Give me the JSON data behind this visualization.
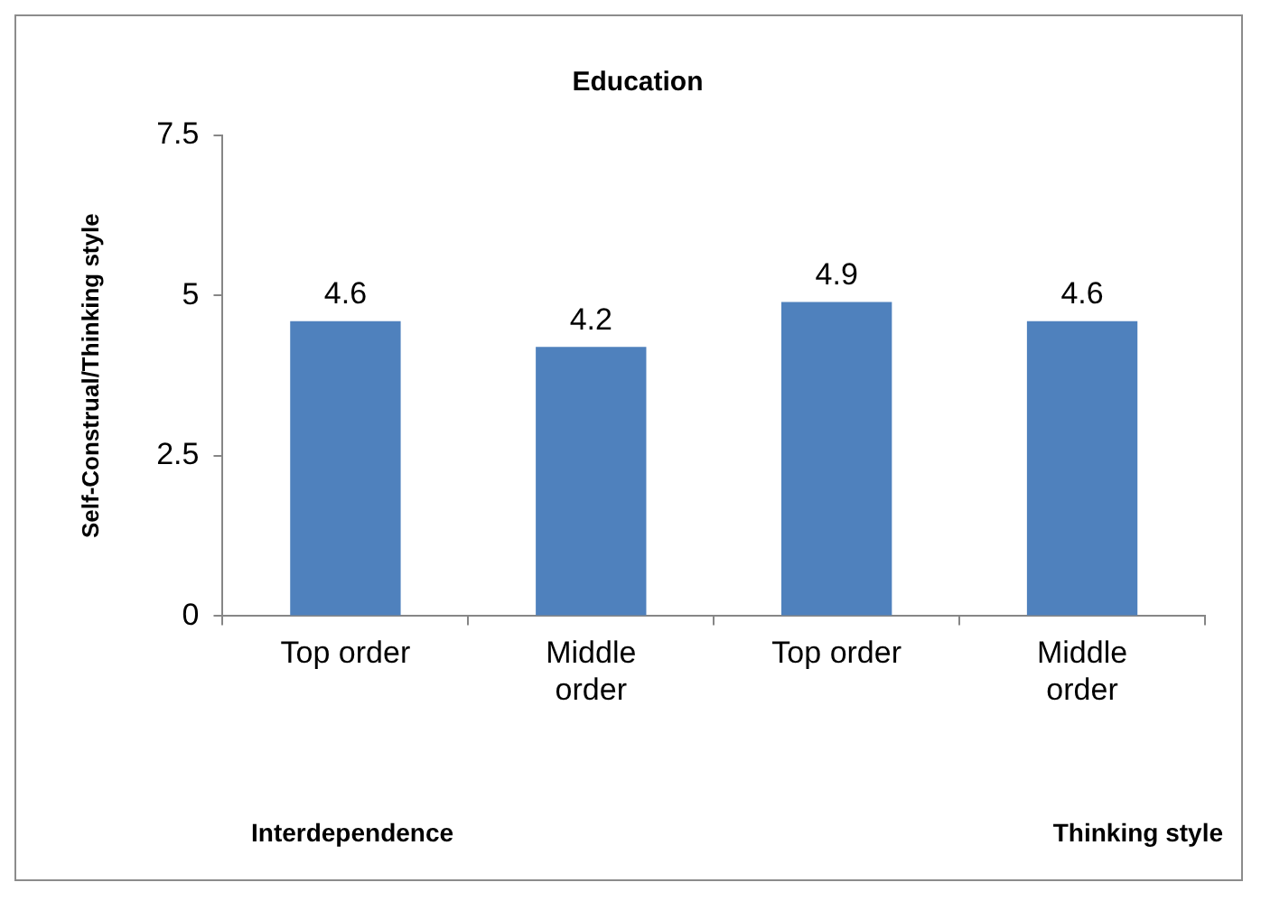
{
  "chart_data": {
    "type": "bar",
    "title": "Education",
    "ylabel": "Self-Construal/Thinking style",
    "categories": [
      "Top order",
      "Middle order",
      "Top order",
      "Middle order"
    ],
    "values": [
      4.6,
      4.2,
      4.9,
      4.6
    ],
    "color": "#4f81bd",
    "ylim": [
      0,
      7.5
    ],
    "yticks": [
      0,
      {
        "value": 2.5,
        "label": "2.5"
      },
      5,
      {
        "value": 7.5,
        "label": "7.5"
      }
    ],
    "grid": false,
    "legend": false,
    "data_labels": true,
    "annotations": [
      "Interdependence",
      "Thinking style"
    ]
  }
}
